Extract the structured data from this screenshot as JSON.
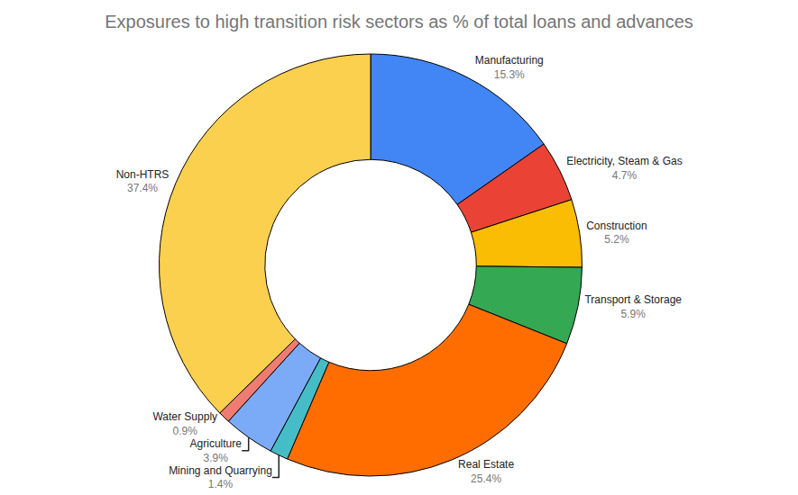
{
  "chart_data": {
    "type": "donut",
    "title": "Exposures to high transition risk sectors as % of total loans and advances",
    "categories": [
      "Manufacturing",
      "Electricity, Steam & Gas",
      "Construction",
      "Transport & Storage",
      "Real Estate",
      "Mining and Quarrying",
      "Agriculture",
      "Water Supply",
      "Non-HTRS"
    ],
    "values": [
      15.3,
      4.7,
      5.2,
      5.9,
      25.4,
      1.4,
      3.9,
      0.9,
      37.4
    ],
    "value_labels": [
      "15.3%",
      "4.7%",
      "5.2%",
      "5.9%",
      "25.4%",
      "1.4%",
      "3.9%",
      "0.9%",
      "37.4%"
    ],
    "colors": [
      "#4285f4",
      "#ea4335",
      "#fbbc04",
      "#34a853",
      "#ff6d01",
      "#46bdc6",
      "#7baaf7",
      "#f07b72",
      "#fcd04f"
    ],
    "data_labels": true
  }
}
